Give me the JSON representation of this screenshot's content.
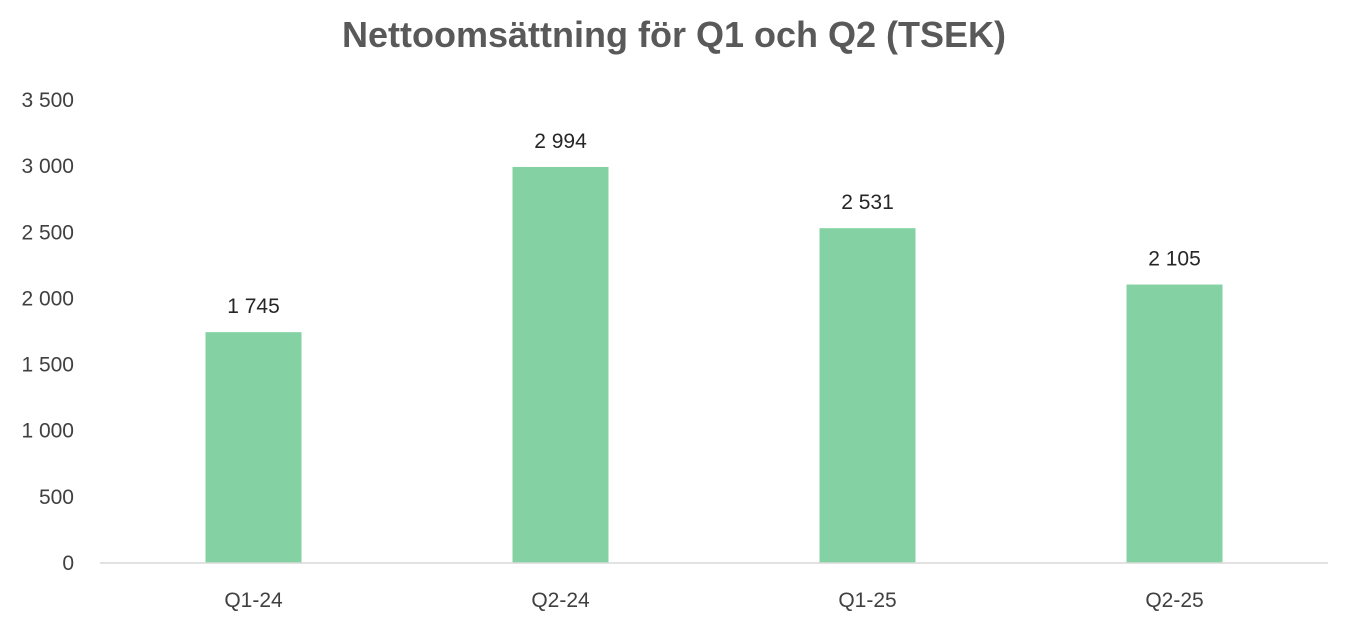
{
  "chart_data": {
    "type": "bar",
    "title": "Nettoomsättning för Q1 och Q2 (TSEK)",
    "categories": [
      "Q1-24",
      "Q2-24",
      "Q1-25",
      "Q2-25"
    ],
    "values": [
      1745,
      2994,
      2531,
      2105
    ],
    "data_labels": [
      "1 745",
      "2 994",
      "2 531",
      "2 105"
    ],
    "ylim": [
      0,
      3500
    ],
    "yticks": [
      0,
      500,
      1000,
      1500,
      2000,
      2500,
      3000,
      3500
    ],
    "ytick_labels": [
      "0",
      "500",
      "1 000",
      "1 500",
      "2 000",
      "2 500",
      "3 000",
      "3 500"
    ],
    "grid": false,
    "legend": "none",
    "bar_color": "#84d1a3",
    "axis_color": "#d9d9d9"
  }
}
